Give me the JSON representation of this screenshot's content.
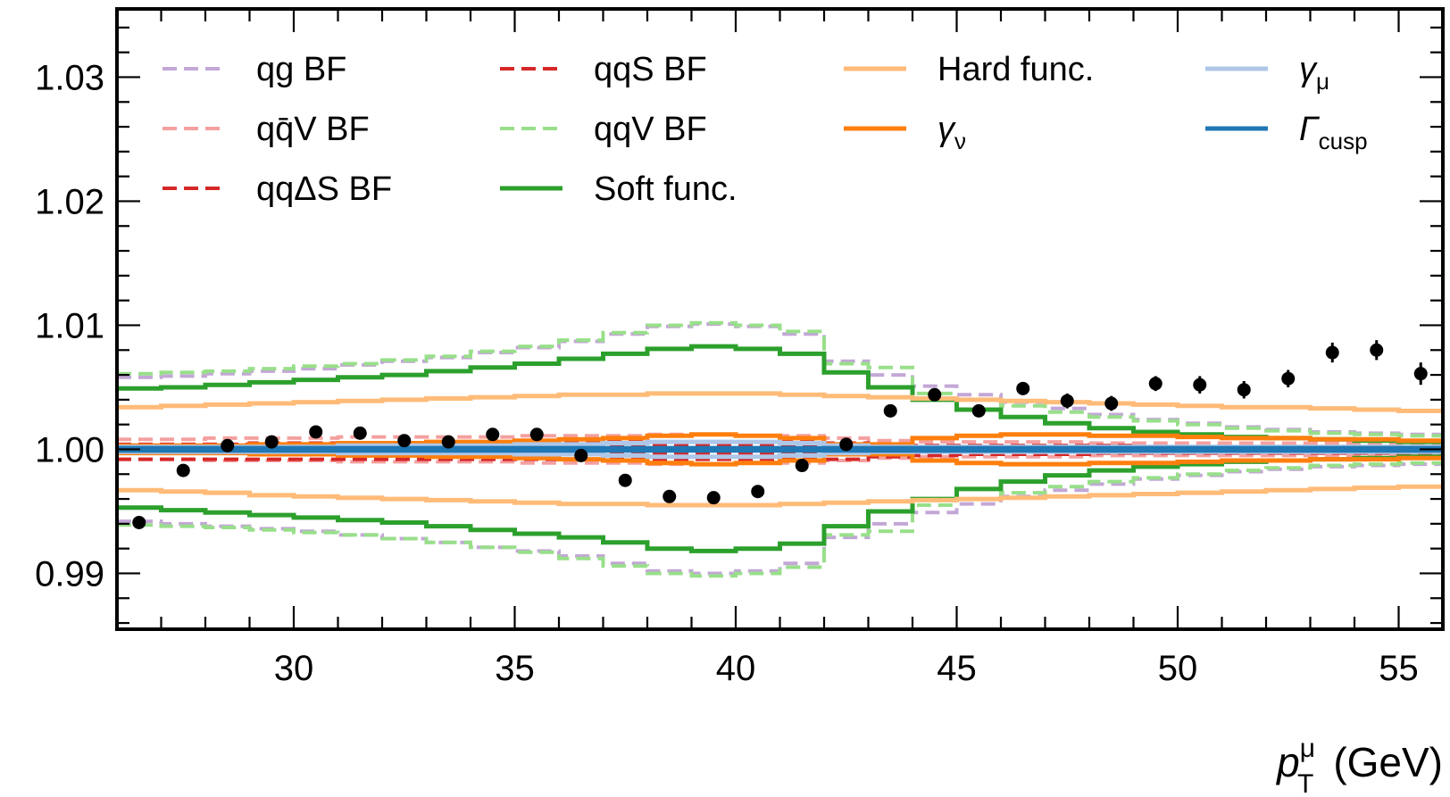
{
  "chart_data": {
    "type": "line",
    "xlabel": {
      "main": "p",
      "sup": "μ",
      "sub": "T",
      "unit": "(GeV)"
    },
    "ylabel": "",
    "xlim": [
      26,
      56
    ],
    "ylim": [
      0.9855,
      1.0355
    ],
    "xticks": [
      30,
      35,
      40,
      45,
      50,
      55
    ],
    "xtick_labels": [
      "30",
      "35",
      "40",
      "45",
      "50",
      "55"
    ],
    "yticks": [
      0.99,
      1.0,
      1.01,
      1.02,
      1.03
    ],
    "ytick_labels": [
      "0.99",
      "1.00",
      "1.01",
      "1.02",
      "1.03"
    ],
    "grid": false,
    "legend": {
      "placement": "top",
      "columns": 4,
      "entries": [
        {
          "id": "qg",
          "label": "qg BF",
          "color": "#c3a7d6",
          "dash": true
        },
        {
          "id": "qqbarV",
          "label": "qq̄V BF",
          "color": "#f4a0a0",
          "dash": true
        },
        {
          "id": "qqdS",
          "label": "qqΔS BF",
          "color": "#d62728",
          "dash": true
        },
        {
          "id": "qqS",
          "label": "qqS BF",
          "color": "#d62728",
          "dash": true
        },
        {
          "id": "qqV",
          "label": "qqV BF",
          "color": "#98df8a",
          "dash": true
        },
        {
          "id": "soft",
          "label": "Soft func.",
          "color": "#2ca02c",
          "dash": false
        },
        {
          "id": "hard",
          "label": "Hard func.",
          "color": "#ffbb78",
          "dash": false
        },
        {
          "id": "gnu",
          "label": "γ",
          "sub": "ν",
          "color": "#ff7f0e",
          "dash": false
        },
        {
          "id": "gmu",
          "label": "γ",
          "sub": "μ",
          "color": "#aec7e8",
          "dash": false
        },
        {
          "id": "cusp",
          "label": "Γ",
          "sub": "cusp",
          "color": "#1f77b4",
          "dash": false
        }
      ]
    },
    "bin_edges": [
      26,
      27,
      28,
      29,
      30,
      31,
      32,
      33,
      34,
      35,
      36,
      37,
      38,
      39,
      40,
      41,
      42,
      43,
      44,
      45,
      46,
      47,
      48,
      49,
      50,
      51,
      52,
      53,
      54,
      55,
      56
    ],
    "series": [
      {
        "id": "qg",
        "band": true,
        "up": [
          1.0058,
          1.0059,
          1.0061,
          1.0063,
          1.0065,
          1.0068,
          1.0071,
          1.0074,
          1.0078,
          1.0082,
          1.0087,
          1.0093,
          1.0099,
          1.0101,
          1.0099,
          1.0093,
          1.0071,
          1.006,
          1.0051,
          1.0044,
          1.0038,
          1.0033,
          1.0028,
          1.0024,
          1.0021,
          1.0018,
          1.0016,
          1.0014,
          1.0013,
          1.0012
        ],
        "down": [
          0.9942,
          0.994,
          0.9938,
          0.9936,
          0.9934,
          0.9931,
          0.9928,
          0.9925,
          0.9921,
          0.9918,
          0.9914,
          0.9908,
          0.9902,
          0.99,
          0.9902,
          0.9908,
          0.9929,
          0.994,
          0.9949,
          0.9956,
          0.9962,
          0.9967,
          0.9972,
          0.9976,
          0.9979,
          0.9982,
          0.9984,
          0.9986,
          0.9987,
          0.9988
        ]
      },
      {
        "id": "qqV",
        "band": true,
        "up": [
          1.0061,
          1.0062,
          1.0063,
          1.0065,
          1.0067,
          1.0069,
          1.0072,
          1.0075,
          1.0079,
          1.0083,
          1.0088,
          1.0094,
          1.01,
          1.0102,
          1.01,
          1.0095,
          1.0069,
          1.0066,
          1.0045,
          1.004,
          1.0035,
          1.003,
          1.0026,
          1.0023,
          1.002,
          1.0017,
          1.0015,
          1.0013,
          1.0012,
          1.0011
        ],
        "down": [
          0.9939,
          0.9938,
          0.9937,
          0.9935,
          0.9933,
          0.9931,
          0.9928,
          0.9925,
          0.9921,
          0.9917,
          0.9912,
          0.9906,
          0.99,
          0.9898,
          0.99,
          0.9905,
          0.9931,
          0.9934,
          0.9955,
          0.996,
          0.9965,
          0.997,
          0.9974,
          0.9977,
          0.998,
          0.9983,
          0.9985,
          0.9987,
          0.9988,
          0.9989
        ]
      },
      {
        "id": "qqbarV",
        "band": true,
        "up": [
          1.0008,
          1.0008,
          1.0009,
          1.0009,
          1.0009,
          1.001,
          1.001,
          1.001,
          1.001,
          1.0011,
          1.0011,
          1.0011,
          1.0012,
          1.0012,
          1.0011,
          1.0011,
          1.0009,
          1.0007,
          1.0006,
          1.0006,
          1.0006,
          1.0006,
          1.0005,
          1.0005,
          1.0005,
          1.0005,
          1.0005,
          1.0005,
          1.0005,
          1.0005
        ],
        "down": [
          0.9992,
          0.9992,
          0.9991,
          0.9991,
          0.9991,
          0.999,
          0.999,
          0.999,
          0.999,
          0.9989,
          0.9989,
          0.9989,
          0.9988,
          0.9988,
          0.9989,
          0.9989,
          0.9991,
          0.9993,
          0.9994,
          0.9994,
          0.9994,
          0.9994,
          0.9995,
          0.9995,
          0.9995,
          0.9995,
          0.9995,
          0.9995,
          0.9995,
          0.9995
        ]
      },
      {
        "id": "qqdS",
        "band": true,
        "up": [
          1.0004,
          1.0004,
          1.0004,
          1.0005,
          1.0005,
          1.0005,
          1.0005,
          1.0005,
          1.0005,
          1.0006,
          1.0006,
          1.0006,
          1.0006,
          1.0006,
          1.0006,
          1.0006,
          1.0005,
          1.0004,
          1.0003,
          1.0003,
          1.0003,
          1.0003,
          1.0003,
          1.0002,
          1.0002,
          1.0002,
          1.0002,
          1.0002,
          1.0002,
          1.0002
        ],
        "down": [
          0.9992,
          0.9992,
          0.9992,
          0.9992,
          0.9992,
          0.9992,
          0.9992,
          0.9992,
          0.9992,
          0.9992,
          0.9992,
          0.9992,
          0.9992,
          0.9992,
          0.9992,
          0.9992,
          0.9992,
          0.9994,
          0.9995,
          0.9996,
          0.9996,
          0.9996,
          0.9997,
          0.9997,
          0.9997,
          0.9997,
          0.9997,
          0.9997,
          0.9997,
          0.9997
        ]
      },
      {
        "id": "qqS",
        "band": true,
        "up": [
          1.0003,
          1.0003,
          1.0003,
          1.0003,
          1.0003,
          1.0003,
          1.0003,
          1.0003,
          1.0003,
          1.0003,
          1.0003,
          1.0003,
          1.0003,
          1.0003,
          1.0003,
          1.0003,
          1.0003,
          1.0002,
          1.0002,
          1.0002,
          1.0002,
          1.0002,
          1.0002,
          1.0002,
          1.0002,
          1.0002,
          1.0002,
          1.0002,
          1.0002,
          1.0002
        ],
        "down": [
          0.9997,
          0.9997,
          0.9997,
          0.9997,
          0.9997,
          0.9997,
          0.9997,
          0.9997,
          0.9997,
          0.9997,
          0.9997,
          0.9997,
          0.9997,
          0.9997,
          0.9997,
          0.9997,
          0.9997,
          0.9998,
          0.9998,
          0.9998,
          0.9998,
          0.9998,
          0.9998,
          0.9998,
          0.9998,
          0.9998,
          0.9998,
          0.9998,
          0.9998,
          0.9998
        ]
      },
      {
        "id": "soft",
        "band": true,
        "up": [
          1.0049,
          1.005,
          1.0052,
          1.0054,
          1.0056,
          1.0058,
          1.006,
          1.0063,
          1.0066,
          1.0069,
          1.0073,
          1.0077,
          1.0081,
          1.0083,
          1.0081,
          1.0077,
          1.0062,
          1.005,
          1.004,
          1.0032,
          1.0026,
          1.0021,
          1.0017,
          1.0014,
          1.0012,
          1.001,
          1.0009,
          1.0008,
          1.0007,
          1.0006
        ],
        "down": [
          0.9953,
          0.9951,
          0.9949,
          0.9947,
          0.9945,
          0.9943,
          0.9941,
          0.9938,
          0.9935,
          0.9932,
          0.9929,
          0.9925,
          0.992,
          0.9918,
          0.992,
          0.9924,
          0.9938,
          0.995,
          0.996,
          0.9968,
          0.9974,
          0.9979,
          0.9983,
          0.9986,
          0.9988,
          0.999,
          0.9991,
          0.9992,
          0.9993,
          0.9994
        ]
      },
      {
        "id": "hard",
        "band": true,
        "up": [
          1.0034,
          1.0035,
          1.0036,
          1.0037,
          1.0038,
          1.0039,
          1.004,
          1.0041,
          1.0042,
          1.0043,
          1.0044,
          1.0044,
          1.0045,
          1.0045,
          1.0045,
          1.0044,
          1.0043,
          1.0042,
          1.0041,
          1.004,
          1.0039,
          1.0038,
          1.0037,
          1.0036,
          1.0035,
          1.0034,
          1.0034,
          1.0033,
          1.0032,
          1.0031
        ],
        "down": [
          0.9967,
          0.9966,
          0.9965,
          0.9963,
          0.9962,
          0.9961,
          0.996,
          0.9959,
          0.9958,
          0.9957,
          0.9956,
          0.9956,
          0.9955,
          0.9955,
          0.9955,
          0.9956,
          0.9957,
          0.9958,
          0.9959,
          0.996,
          0.9961,
          0.9962,
          0.9963,
          0.9964,
          0.9965,
          0.9966,
          0.9967,
          0.9968,
          0.9969,
          0.997
        ]
      },
      {
        "id": "gnu",
        "band": true,
        "up": [
          1.0003,
          1.0003,
          1.0003,
          1.0004,
          1.0004,
          1.0005,
          1.0005,
          1.0006,
          1.0006,
          1.0007,
          1.0008,
          1.0009,
          1.0011,
          1.0012,
          1.0011,
          1.0009,
          1.0004,
          1.0004,
          1.0009,
          1.0011,
          1.0012,
          1.0012,
          1.0011,
          1.0011,
          1.001,
          1.0009,
          1.0009,
          1.0008,
          1.0008,
          1.0007
        ],
        "down": [
          0.9997,
          0.9997,
          0.9997,
          0.9996,
          0.9996,
          0.9995,
          0.9995,
          0.9994,
          0.9994,
          0.9993,
          0.9992,
          0.9991,
          0.9989,
          0.9988,
          0.9989,
          0.9991,
          0.9996,
          0.9996,
          0.9991,
          0.9989,
          0.9988,
          0.9988,
          0.9989,
          0.9989,
          0.999,
          0.9991,
          0.9991,
          0.9992,
          0.9992,
          0.9993
        ]
      },
      {
        "id": "gmu",
        "band": true,
        "up": [
          1.0002,
          1.0002,
          1.0002,
          1.0002,
          1.0002,
          1.0003,
          1.0003,
          1.0003,
          1.0003,
          1.0004,
          1.0004,
          1.0005,
          1.0006,
          1.0006,
          1.0006,
          1.0005,
          1.0003,
          1.0002,
          1.0002,
          1.0002,
          1.0002,
          1.0002,
          1.0002,
          1.0002,
          1.0002,
          1.0002,
          1.0002,
          1.0002,
          1.0002,
          1.0002
        ],
        "down": [
          0.9998,
          0.9998,
          0.9998,
          0.9998,
          0.9998,
          0.9997,
          0.9997,
          0.9997,
          0.9997,
          0.9996,
          0.9996,
          0.9995,
          0.9994,
          0.9994,
          0.9994,
          0.9995,
          0.9997,
          0.9998,
          0.9998,
          0.9998,
          0.9998,
          0.9998,
          0.9998,
          0.9998,
          0.9998,
          0.9998,
          0.9998,
          0.9998,
          0.9998,
          0.9998
        ]
      },
      {
        "id": "cusp",
        "band": true,
        "up": [
          1.0001,
          1.0001,
          1.0001,
          1.0001,
          1.0001,
          1.0001,
          1.0001,
          1.0001,
          1.0001,
          1.0001,
          1.0001,
          1.0001,
          1.0001,
          1.0001,
          1.0001,
          1.0001,
          1.0001,
          1.0001,
          1.0001,
          1.0001,
          1.0001,
          1.0001,
          1.0001,
          1.0001,
          1.0001,
          1.0001,
          1.0001,
          1.0001,
          1.0001,
          1.0001
        ],
        "down": [
          0.9999,
          0.9999,
          0.9999,
          0.9999,
          0.9999,
          0.9999,
          0.9999,
          0.9999,
          0.9999,
          0.9999,
          0.9999,
          0.9999,
          0.9999,
          0.9999,
          0.9999,
          0.9999,
          0.9999,
          0.9999,
          0.9999,
          0.9999,
          0.9999,
          0.9999,
          0.9999,
          0.9999,
          0.9999,
          0.9999,
          0.9999,
          0.9999,
          0.9999,
          0.9999
        ]
      }
    ],
    "data_points": {
      "x": [
        26.5,
        27.5,
        28.5,
        29.5,
        30.5,
        31.5,
        32.5,
        33.5,
        34.5,
        35.5,
        36.5,
        37.5,
        38.5,
        39.5,
        40.5,
        41.5,
        42.5,
        43.5,
        44.5,
        45.5,
        46.5,
        47.5,
        48.5,
        49.5,
        50.5,
        51.5,
        52.5,
        53.5,
        54.5,
        55.5
      ],
      "y": [
        0.9941,
        0.9983,
        1.0003,
        1.0006,
        1.0014,
        1.0013,
        1.0007,
        1.0006,
        1.0012,
        1.0012,
        0.9995,
        0.9975,
        0.9962,
        0.9961,
        0.9966,
        0.9987,
        1.0004,
        1.0031,
        1.0044,
        1.0031,
        1.0049,
        1.0039,
        1.0037,
        1.0053,
        1.0052,
        1.0048,
        1.0057,
        1.0078,
        1.008,
        1.0061
      ],
      "err": [
        0.0003,
        0.0003,
        0.0003,
        0.0003,
        0.0003,
        0.0003,
        0.0003,
        0.0003,
        0.0003,
        0.0003,
        0.0003,
        0.0003,
        0.0003,
        0.0003,
        0.0003,
        0.0003,
        0.0003,
        0.0004,
        0.0004,
        0.0005,
        0.0005,
        0.0006,
        0.0006,
        0.0006,
        0.0007,
        0.0007,
        0.0007,
        0.0008,
        0.0008,
        0.0009
      ],
      "color": "#000000"
    }
  }
}
